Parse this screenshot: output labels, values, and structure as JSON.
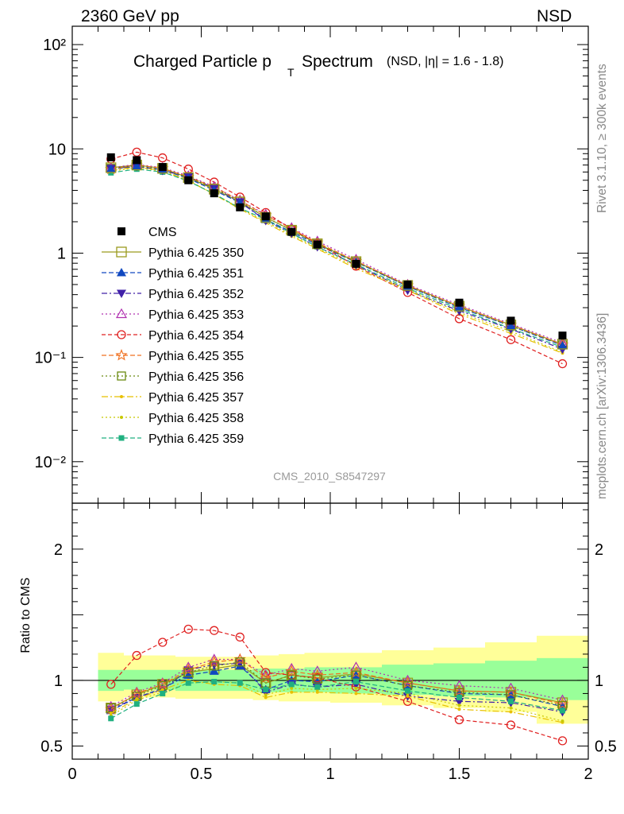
{
  "header": {
    "left": "2360 GeV pp",
    "right": "NSD"
  },
  "side_labels": {
    "rivet": "Rivet 3.1.10, ≥ 300k events",
    "mcplots": "mcplots.cern.ch [arXiv:1306.3436]"
  },
  "chart_data": [
    {
      "type": "scatter",
      "title": "Charged Particle p",
      "title_sub": "T",
      "title_suffix": "Spectrum",
      "title_note": "(NSD, |η| = 1.6 - 1.8)",
      "watermark": "CMS_2010_S8547297",
      "yscale": "log",
      "ylim": [
        0.004,
        150
      ],
      "xlim": [
        0,
        2
      ],
      "ytick_labels": [
        "10⁻²",
        "10⁻¹",
        "1",
        "10",
        "10²"
      ],
      "x": [
        0.15,
        0.25,
        0.35,
        0.45,
        0.55,
        0.65,
        0.75,
        0.85,
        0.95,
        1.1,
        1.3,
        1.5,
        1.7,
        1.9
      ],
      "legend_position": "left",
      "series": [
        {
          "name": "CMS",
          "color": "#000000",
          "marker": "square-filled",
          "dash": "none",
          "values": [
            8.3,
            7.8,
            6.7,
            5.0,
            3.75,
            2.75,
            2.25,
            1.6,
            1.21,
            0.79,
            0.5,
            0.335,
            0.225,
            0.162
          ]
        },
        {
          "name": "Pythia 6.425 350",
          "color": "#9a9a1e",
          "marker": "square-open-big",
          "dash": "solid",
          "values": [
            6.6,
            7.0,
            6.5,
            5.3,
            4.1,
            3.1,
            2.2,
            1.66,
            1.23,
            0.83,
            0.49,
            0.31,
            0.205,
            0.134
          ]
        },
        {
          "name": "Pythia 6.425 351",
          "color": "#1048c0",
          "marker": "triangle-up-filled",
          "dash": "6,3",
          "values": [
            6.4,
            6.8,
            6.3,
            5.2,
            4.0,
            3.05,
            2.1,
            1.6,
            1.2,
            0.82,
            0.48,
            0.3,
            0.2,
            0.13
          ]
        },
        {
          "name": "Pythia 6.425 352",
          "color": "#4020a8",
          "marker": "triangle-down-filled",
          "dash": "7,3,2,3",
          "values": [
            6.5,
            6.8,
            6.2,
            5.4,
            4.2,
            3.1,
            2.05,
            1.55,
            1.15,
            0.77,
            0.44,
            0.28,
            0.187,
            0.12
          ]
        },
        {
          "name": "Pythia 6.425 353",
          "color": "#b030b0",
          "marker": "triangle-up-open",
          "dash": "2,3",
          "values": [
            6.6,
            7.1,
            6.6,
            5.5,
            4.35,
            3.2,
            2.35,
            1.75,
            1.3,
            0.87,
            0.5,
            0.32,
            0.21,
            0.138
          ]
        },
        {
          "name": "Pythia 6.425 354",
          "color": "#e02020",
          "marker": "circle-open",
          "dash": "5,3",
          "values": [
            8.0,
            9.3,
            8.2,
            6.4,
            4.8,
            3.45,
            2.45,
            1.7,
            1.24,
            0.75,
            0.42,
            0.235,
            0.148,
            0.087
          ]
        },
        {
          "name": "Pythia 6.425 355",
          "color": "#f07020",
          "marker": "star-open",
          "dash": "6,3",
          "values": [
            6.4,
            7.0,
            6.5,
            5.4,
            4.3,
            3.2,
            2.3,
            1.72,
            1.26,
            0.84,
            0.49,
            0.31,
            0.205,
            0.133
          ]
        },
        {
          "name": "Pythia 6.425 356",
          "color": "#6a8a10",
          "marker": "square-open",
          "dash": "2,3",
          "values": [
            6.5,
            6.9,
            6.4,
            5.3,
            4.2,
            3.15,
            2.2,
            1.66,
            1.22,
            0.82,
            0.48,
            0.305,
            0.2,
            0.132
          ]
        },
        {
          "name": "Pythia 6.425 357",
          "color": "#e8c000",
          "marker": "dot",
          "dash": "8,3,2,3",
          "values": [
            6.2,
            6.7,
            6.2,
            5.0,
            3.65,
            2.65,
            1.95,
            1.45,
            1.1,
            0.71,
            0.44,
            0.26,
            0.17,
            0.11
          ]
        },
        {
          "name": "Pythia 6.425 358",
          "color": "#c8c800",
          "marker": "dot",
          "dash": "2,3",
          "values": [
            6.1,
            6.6,
            6.1,
            4.9,
            3.7,
            2.7,
            2.0,
            1.5,
            1.12,
            0.74,
            0.45,
            0.27,
            0.178,
            0.112
          ]
        },
        {
          "name": "Pythia 6.425 359",
          "color": "#20b080",
          "marker": "square-filled-small",
          "dash": "6,3",
          "values": [
            5.9,
            6.4,
            6.0,
            4.9,
            3.7,
            2.7,
            2.1,
            1.55,
            1.15,
            0.78,
            0.46,
            0.29,
            0.19,
            0.125
          ]
        }
      ]
    },
    {
      "type": "scatter",
      "ylabel": "Ratio to CMS",
      "ylim": [
        0.4,
        2.35
      ],
      "xlim": [
        0,
        2
      ],
      "ytick_labels": [
        "0.5",
        "1",
        "2"
      ],
      "xtick_labels": [
        "0",
        "0.5",
        "1",
        "1.5",
        "2"
      ],
      "reference_line": 1,
      "bands": {
        "x_edges": [
          0.1,
          0.2,
          0.3,
          0.4,
          0.5,
          0.6,
          0.7,
          0.8,
          0.9,
          1.0,
          1.2,
          1.4,
          1.6,
          1.8,
          2.0
        ],
        "stat_sys_low": [
          0.84,
          0.87,
          0.87,
          0.86,
          0.86,
          0.86,
          0.85,
          0.84,
          0.84,
          0.83,
          0.81,
          0.79,
          0.76,
          0.67
        ],
        "stat_sys_high": [
          1.21,
          1.19,
          1.19,
          1.18,
          1.18,
          1.18,
          1.19,
          1.2,
          1.21,
          1.21,
          1.23,
          1.25,
          1.29,
          1.34
        ],
        "sys_low": [
          0.92,
          0.93,
          0.93,
          0.92,
          0.92,
          0.92,
          0.91,
          0.91,
          0.91,
          0.9,
          0.89,
          0.88,
          0.87,
          0.85
        ],
        "sys_high": [
          1.08,
          1.08,
          1.08,
          1.08,
          1.08,
          1.08,
          1.09,
          1.09,
          1.1,
          1.1,
          1.12,
          1.13,
          1.15,
          1.17
        ],
        "outer_color": "#ffff99",
        "inner_color": "#99ff99"
      },
      "series": [
        {
          "name": "Pythia 6.425 350",
          "values": [
            0.79,
            0.89,
            0.97,
            1.06,
            1.09,
            1.12,
            0.98,
            1.04,
            1.02,
            1.05,
            0.98,
            0.92,
            0.91,
            0.83
          ]
        },
        {
          "name": "Pythia 6.425 351",
          "values": [
            0.77,
            0.87,
            0.94,
            1.04,
            1.07,
            1.11,
            0.93,
            1.0,
            0.99,
            1.04,
            0.96,
            0.9,
            0.89,
            0.8
          ]
        },
        {
          "name": "Pythia 6.425 352",
          "values": [
            0.78,
            0.87,
            0.93,
            1.08,
            1.12,
            1.13,
            0.91,
            0.97,
            0.95,
            0.97,
            0.88,
            0.84,
            0.83,
            0.76
          ]
        },
        {
          "name": "Pythia 6.425 353",
          "values": [
            0.8,
            0.91,
            0.98,
            1.1,
            1.16,
            1.16,
            1.04,
            1.09,
            1.07,
            1.1,
            1.0,
            0.96,
            0.94,
            0.85
          ]
        },
        {
          "name": "Pythia 6.425 354",
          "values": [
            0.97,
            1.19,
            1.29,
            1.39,
            1.38,
            1.33,
            1.06,
            1.04,
            1.02,
            0.95,
            0.84,
            0.7,
            0.66,
            0.54
          ]
        },
        {
          "name": "Pythia 6.425 355",
          "values": [
            0.78,
            0.9,
            0.97,
            1.08,
            1.14,
            1.16,
            1.02,
            1.07,
            1.04,
            1.06,
            0.98,
            0.92,
            0.91,
            0.82
          ]
        },
        {
          "name": "Pythia 6.425 356",
          "values": [
            0.79,
            0.88,
            0.96,
            1.06,
            1.11,
            1.14,
            0.98,
            1.04,
            1.01,
            1.04,
            0.96,
            0.91,
            0.89,
            0.81
          ]
        },
        {
          "name": "Pythia 6.425 357",
          "values": [
            0.75,
            0.86,
            0.93,
            1.0,
            0.97,
            0.96,
            0.87,
            0.91,
            0.91,
            0.9,
            0.88,
            0.78,
            0.76,
            0.68
          ]
        },
        {
          "name": "Pythia 6.425 358",
          "values": [
            0.73,
            0.85,
            0.91,
            0.98,
            0.99,
            0.98,
            0.89,
            0.94,
            0.93,
            0.94,
            0.9,
            0.81,
            0.79,
            0.69
          ]
        },
        {
          "name": "Pythia 6.425 359",
          "values": [
            0.71,
            0.82,
            0.9,
            0.98,
            0.99,
            0.98,
            0.93,
            0.97,
            0.95,
            0.99,
            0.92,
            0.87,
            0.84,
            0.77
          ]
        }
      ]
    }
  ]
}
